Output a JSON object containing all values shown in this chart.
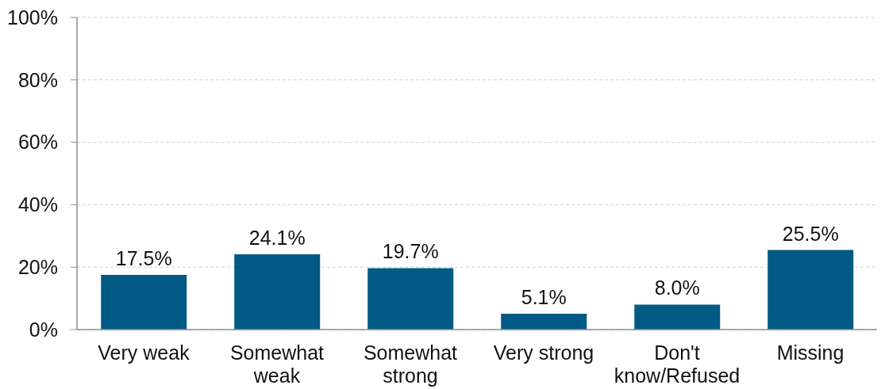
{
  "chart_data": {
    "type": "bar",
    "categories": [
      "Very weak",
      "Somewhat weak",
      "Somewhat strong",
      "Very strong",
      "Don't know/Refused",
      "Missing"
    ],
    "values": [
      17.5,
      24.1,
      19.7,
      5.1,
      8.0,
      25.5
    ],
    "value_labels": [
      "17.5%",
      "24.1%",
      "19.7%",
      "5.1%",
      "8.0%",
      "25.5%"
    ],
    "color": "#005a84",
    "ylim": [
      0,
      100
    ],
    "yticks": [
      {
        "value": 0,
        "label": "0%"
      },
      {
        "value": 20,
        "label": "20%"
      },
      {
        "value": 40,
        "label": "40%"
      },
      {
        "value": 60,
        "label": "60%"
      },
      {
        "value": 80,
        "label": "80%"
      },
      {
        "value": 100,
        "label": "100%"
      }
    ],
    "grid": "y"
  }
}
